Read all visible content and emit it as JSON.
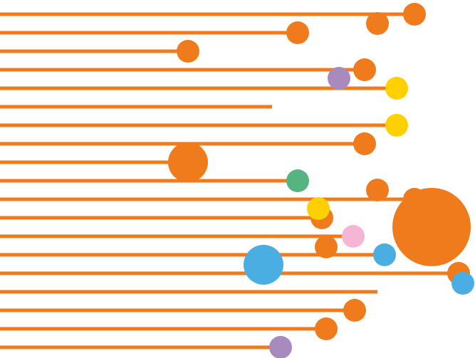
{
  "chart_data": {
    "type": "scatter",
    "title": "",
    "xlabel": "",
    "ylabel": "",
    "axes_visible": false,
    "grid": false,
    "legend": "none",
    "palette": {
      "orange": "#f07b1d",
      "purple": "#a88abf",
      "yellow": "#ffd000",
      "green": "#55b47f",
      "blue": "#4aaee2",
      "pink": "#f4b6d4"
    },
    "rows": [
      {
        "length": 582,
        "points": [
          {
            "x": 582,
            "dy": 0,
            "r": 16,
            "color": "orange"
          },
          {
            "x": 530,
            "dy": 13,
            "r": 16,
            "color": "orange"
          }
        ]
      },
      {
        "length": 418,
        "points": [
          {
            "x": 418,
            "dy": 0,
            "r": 16,
            "color": "orange"
          }
        ]
      },
      {
        "length": 264,
        "points": [
          {
            "x": 264,
            "dy": 0,
            "r": 16,
            "color": "orange"
          }
        ]
      },
      {
        "length": 512,
        "points": [
          {
            "x": 512,
            "dy": 0,
            "r": 16,
            "color": "orange"
          },
          {
            "x": 476,
            "dy": 12,
            "r": 16,
            "color": "purple"
          }
        ]
      },
      {
        "length": 557,
        "points": [
          {
            "x": 557,
            "dy": 0,
            "r": 16,
            "color": "yellow"
          }
        ]
      },
      {
        "length": 382,
        "points": []
      },
      {
        "length": 557,
        "points": [
          {
            "x": 557,
            "dy": 0,
            "r": 16,
            "color": "yellow"
          }
        ]
      },
      {
        "length": 512,
        "points": [
          {
            "x": 512,
            "dy": 0,
            "r": 16,
            "color": "orange"
          }
        ]
      },
      {
        "length": 264,
        "points": [
          {
            "x": 264,
            "dy": 0,
            "r": 28,
            "color": "orange"
          }
        ]
      },
      {
        "length": 418,
        "points": [
          {
            "x": 418,
            "dy": 0,
            "r": 16,
            "color": "green"
          }
        ]
      },
      {
        "length": 582,
        "points": [
          {
            "x": 582,
            "dy": 0,
            "r": 16,
            "color": "orange"
          },
          {
            "x": 530,
            "dy": -13,
            "r": 16,
            "color": "orange"
          }
        ]
      },
      {
        "length": 452,
        "points": [
          {
            "x": 452,
            "dy": 0,
            "r": 16,
            "color": "orange"
          },
          {
            "x": 447,
            "dy": -13,
            "r": 16,
            "color": "yellow"
          }
        ]
      },
      {
        "length": 496,
        "points": [
          {
            "x": 496,
            "dy": 0,
            "r": 16,
            "color": "pink"
          }
        ]
      },
      {
        "length": 540,
        "points": [
          {
            "x": 458,
            "dy": -11,
            "r": 16,
            "color": "orange"
          },
          {
            "x": 540,
            "dy": 0,
            "r": 16,
            "color": "blue"
          },
          {
            "x": 370,
            "dy": 14,
            "r": 28,
            "color": "blue"
          }
        ]
      },
      {
        "length": 644,
        "points": [
          {
            "x": 644,
            "dy": 0,
            "r": 16,
            "color": "orange"
          },
          {
            "x": 650,
            "dy": 14,
            "r": 16,
            "color": "blue"
          }
        ]
      },
      {
        "length": 530,
        "points": []
      },
      {
        "length": 498,
        "points": [
          {
            "x": 498,
            "dy": 0,
            "r": 16,
            "color": "orange"
          }
        ]
      },
      {
        "length": 458,
        "points": [
          {
            "x": 458,
            "dy": 0,
            "r": 16,
            "color": "orange"
          }
        ]
      },
      {
        "length": 394,
        "points": [
          {
            "x": 394,
            "dy": 0,
            "r": 16,
            "color": "purple"
          }
        ]
      }
    ],
    "highlight_bubble": {
      "x": 606,
      "row": 11.5,
      "r": 55,
      "color": "orange"
    }
  }
}
